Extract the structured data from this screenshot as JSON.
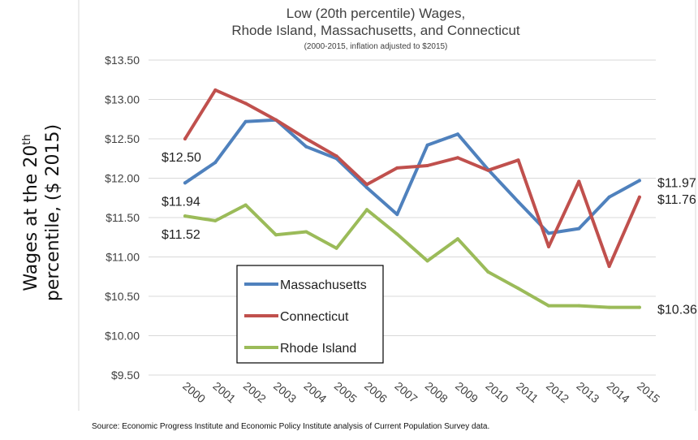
{
  "chart_data": {
    "type": "line",
    "title": "Low (20th percentile) Wages,",
    "title_line2": "Rhode Island, Massachusetts, and Connecticut",
    "subtitle": "(2000-2015, inflation adjusted to $2015)",
    "ylabel_line1": "Wages at the 20",
    "ylabel_sup": "th",
    "ylabel_line2": "percentile, ($ 2015)",
    "source": "Source: Economic Progress Institute and Economic Policy Institute analysis of Current Population Survey data.",
    "ylim": [
      9.5,
      13.5
    ],
    "yticks": [
      "$9.50",
      "$10.00",
      "$10.50",
      "$11.00",
      "$11.50",
      "$12.00",
      "$12.50",
      "$13.00",
      "$13.50"
    ],
    "ytick_values": [
      9.5,
      10.0,
      10.5,
      11.0,
      11.5,
      12.0,
      12.5,
      13.0,
      13.5
    ],
    "categories": [
      "2000",
      "2001",
      "2002",
      "2003",
      "2004",
      "2005",
      "2006",
      "2007",
      "2008",
      "2009",
      "2010",
      "2011",
      "2012",
      "2013",
      "2014",
      "2015"
    ],
    "grid": "horizontal",
    "legend_placement": "lower-left inside plot",
    "series": [
      {
        "name": "Massachusetts",
        "color": "#4f81bd",
        "values": [
          11.94,
          12.2,
          12.72,
          12.74,
          12.4,
          12.25,
          11.88,
          11.54,
          12.42,
          12.56,
          12.11,
          11.7,
          11.3,
          11.36,
          11.76,
          11.97
        ]
      },
      {
        "name": "Connecticut",
        "color": "#c0504d",
        "values": [
          12.5,
          13.12,
          12.95,
          12.74,
          12.5,
          12.28,
          11.92,
          12.13,
          12.16,
          12.26,
          12.1,
          12.23,
          11.13,
          11.96,
          10.88,
          11.76
        ]
      },
      {
        "name": "Rhode Island",
        "color": "#9bbb59",
        "values": [
          11.52,
          11.46,
          11.66,
          11.28,
          11.32,
          11.11,
          11.6,
          11.29,
          10.95,
          11.23,
          10.81,
          10.6,
          10.38,
          10.38,
          10.36,
          10.36
        ]
      }
    ],
    "data_labels": [
      {
        "text": "$12.50",
        "series": "Connecticut",
        "index": 0
      },
      {
        "text": "$11.94",
        "series": "Massachusetts",
        "index": 0
      },
      {
        "text": "$11.52",
        "series": "Rhode Island",
        "index": 0
      },
      {
        "text": "$11.97",
        "series": "Massachusetts",
        "index": 15
      },
      {
        "text": "$11.76",
        "series": "Connecticut",
        "index": 15
      },
      {
        "text": "$10.36",
        "series": "Rhode Island",
        "index": 15
      }
    ]
  }
}
